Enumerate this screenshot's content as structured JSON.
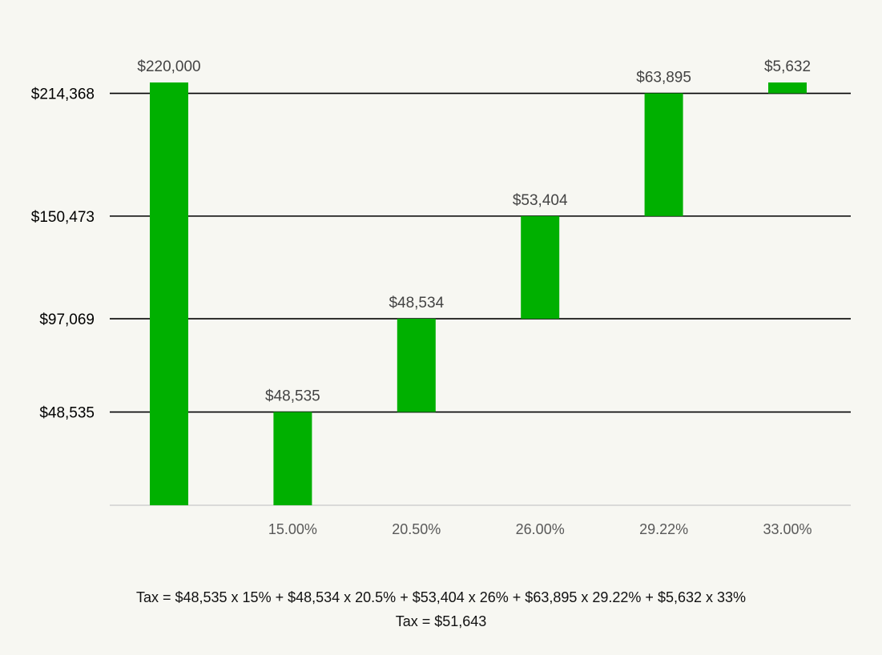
{
  "chart_data": {
    "type": "bar",
    "subtype": "waterfall",
    "categories": [
      "",
      "15.00%",
      "20.50%",
      "26.00%",
      "29.22%",
      "33.00%"
    ],
    "bars": [
      {
        "category": "",
        "start": 0,
        "end": 220000,
        "label": "$220,000"
      },
      {
        "category": "15.00%",
        "start": 0,
        "end": 48535,
        "label": "$48,535"
      },
      {
        "category": "20.50%",
        "start": 48535,
        "end": 97069,
        "label": "$48,534"
      },
      {
        "category": "26.00%",
        "start": 97069,
        "end": 150473,
        "label": "$53,404"
      },
      {
        "category": "29.22%",
        "start": 150473,
        "end": 214368,
        "label": "$63,895"
      },
      {
        "category": "33.00%",
        "start": 214368,
        "end": 220000,
        "label": "$5,632"
      }
    ],
    "y_ticks": [
      {
        "value": 48535,
        "label": "$48,535"
      },
      {
        "value": 97069,
        "label": "$97,069"
      },
      {
        "value": 150473,
        "label": "$150,473"
      },
      {
        "value": 214368,
        "label": "$214,368"
      }
    ],
    "ylim": [
      0,
      220000
    ],
    "bar_color": "#00b000",
    "gridlines": true,
    "title": "",
    "xlabel": "",
    "ylabel": ""
  },
  "formula": {
    "line1": "Tax = $48,535 x 15% + $48,534 x 20.5% + $53,404 x 26% + $63,895 x 29.22% + $5,632 x 33%",
    "line2": "Tax = $51,643"
  }
}
